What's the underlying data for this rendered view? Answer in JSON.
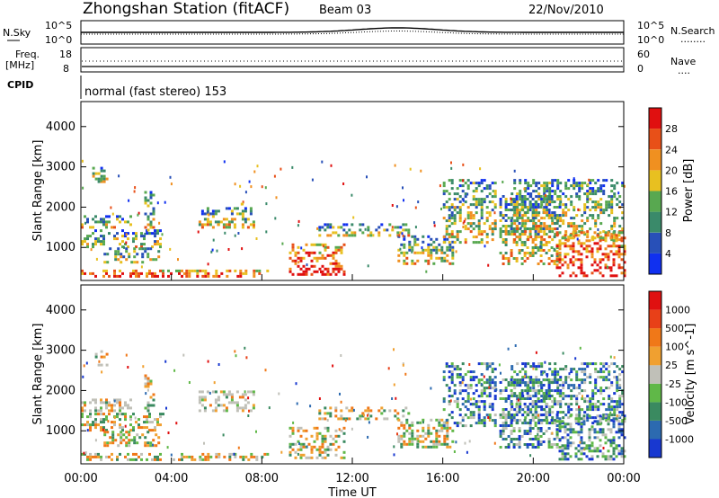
{
  "header": {
    "station": "Zhongshan Station (fitACF)",
    "beam": "Beam 03",
    "date": "22/Nov/2010"
  },
  "strip_labels": {
    "nsky": "N.Sky",
    "nsearch": "N.Search",
    "nsearch_key": "........",
    "freq_line1": "Freq.",
    "freq_line2": "[MHz]",
    "nave": "Nave",
    "nave_key": "....",
    "cpid": "CPID",
    "cpid_value": "normal (fast stereo) 153",
    "noise_left_ticks": [
      "10^5",
      "10^0"
    ],
    "noise_right_ticks": [
      "10^5",
      "10^0"
    ],
    "freq_ticks": [
      "18",
      "8"
    ],
    "nave_ticks": [
      "60",
      "0"
    ]
  },
  "chart_data": [
    {
      "type": "heatmap",
      "name": "power",
      "ylabel": "Slant Range [km]",
      "yticks": [
        1000,
        2000,
        3000,
        4000
      ],
      "ylim": [
        180,
        4620
      ],
      "colorbar": {
        "label": "Power [dB]",
        "ticks": [
          "4",
          "8",
          "12",
          "16",
          "20",
          "24",
          "28"
        ],
        "colors": [
          "#1030f0",
          "#2850b8",
          "#3a8a6a",
          "#58a850",
          "#e8c020",
          "#f09020",
          "#e85018",
          "#e01010"
        ]
      }
    },
    {
      "type": "heatmap",
      "name": "velocity",
      "ylabel": "Slant Range [km]",
      "yticks": [
        1000,
        2000,
        3000,
        4000
      ],
      "ylim": [
        180,
        4620
      ],
      "xlabel": "Time UT",
      "xticks": [
        "00:00",
        "04:00",
        "08:00",
        "12:00",
        "16:00",
        "20:00",
        "00:00"
      ],
      "colorbar": {
        "label": "Velocity [m s^-1]",
        "ticks": [
          "1000",
          "500",
          "100",
          "25",
          "-25",
          "-100",
          "-500",
          "-1000"
        ],
        "colors": [
          "#1838d0",
          "#2c6ab0",
          "#3a8a60",
          "#60b848",
          "#c0c0b8",
          "#f0a030",
          "#f07818",
          "#e84018",
          "#e01010"
        ]
      }
    }
  ]
}
